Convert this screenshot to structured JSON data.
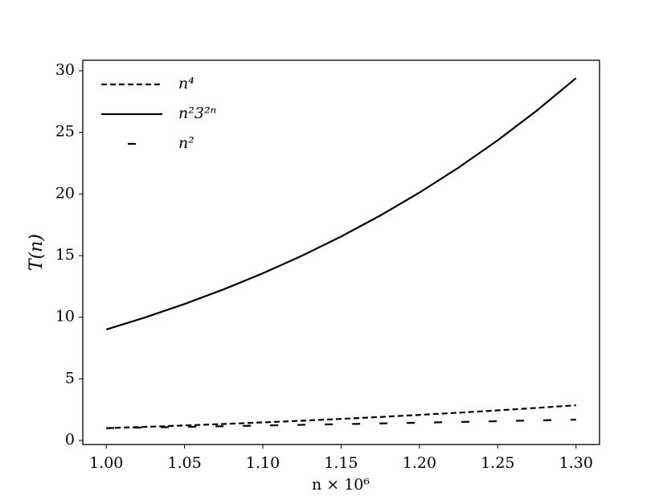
{
  "chart_data": {
    "type": "line",
    "xlabel": "n × 10⁶",
    "ylabel": "T(n)",
    "x": [
      1.0,
      1.025,
      1.05,
      1.075,
      1.1,
      1.125,
      1.15,
      1.175,
      1.2,
      1.225,
      1.25,
      1.275,
      1.3
    ],
    "series": [
      {
        "name": "n⁴",
        "color": "#000000",
        "dash": "7,4",
        "values": [
          1,
          1.1038,
          1.2155,
          1.3355,
          1.4641,
          1.6018,
          1.749,
          1.9062,
          2.0736,
          2.2519,
          2.4414,
          2.6426,
          2.8561
        ]
      },
      {
        "name": "n²3²ⁿ",
        "color": "#000000",
        "dash": "none",
        "values": [
          9,
          9.989,
          11.075,
          12.264,
          13.566,
          14.991,
          16.549,
          18.252,
          20.112,
          22.142,
          24.357,
          26.772,
          29.404
        ]
      },
      {
        "name": "n²",
        "color": "#000000",
        "dash": "10,24",
        "values": [
          1,
          1.0506,
          1.1025,
          1.1556,
          1.21,
          1.2656,
          1.3225,
          1.3806,
          1.44,
          1.5006,
          1.5625,
          1.6256,
          1.69
        ]
      }
    ],
    "xlim": [
      0.985,
      1.315
    ],
    "xticks": [
      {
        "value": 1.0,
        "label": "1.00"
      },
      {
        "value": 1.05,
        "label": "1.05"
      },
      {
        "value": 1.1,
        "label": "1.10"
      },
      {
        "value": 1.15,
        "label": "1.15"
      },
      {
        "value": 1.2,
        "label": "1.20"
      },
      {
        "value": 1.25,
        "label": "1.25"
      },
      {
        "value": 1.3,
        "label": "1.30"
      }
    ],
    "ylim": [
      -0.33,
      30.85
    ],
    "yticks": [
      0,
      5,
      10,
      15,
      20,
      25,
      30
    ],
    "legend": "upper left",
    "grid": false
  }
}
